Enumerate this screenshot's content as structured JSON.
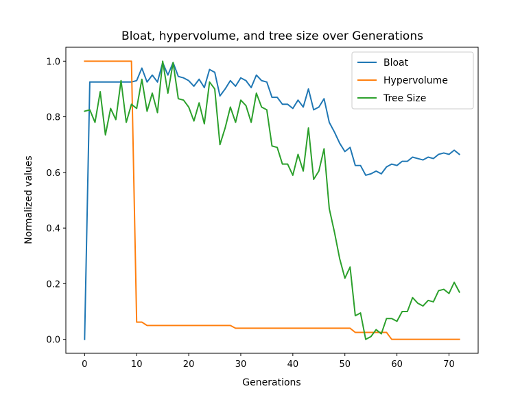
{
  "chart_data": {
    "type": "line",
    "title": "Bloat, hypervolume, and tree size over Generations",
    "xlabel": "Generations",
    "ylabel": "Normalized values",
    "xlim": [
      -3.6,
      75.6
    ],
    "ylim": [
      -0.05,
      1.05
    ],
    "xticks": [
      0,
      10,
      20,
      30,
      40,
      50,
      60,
      70
    ],
    "yticks": [
      "0.0",
      "0.2",
      "0.4",
      "0.6",
      "0.8",
      "1.0"
    ],
    "ytick_values": [
      0.0,
      0.2,
      0.4,
      0.6,
      0.8,
      1.0
    ],
    "grid": false,
    "legend_position": "top-right",
    "x": [
      0,
      1,
      2,
      3,
      4,
      5,
      6,
      7,
      8,
      9,
      10,
      11,
      12,
      13,
      14,
      15,
      16,
      17,
      18,
      19,
      20,
      21,
      22,
      23,
      24,
      25,
      26,
      27,
      28,
      29,
      30,
      31,
      32,
      33,
      34,
      35,
      36,
      37,
      38,
      39,
      40,
      41,
      42,
      43,
      44,
      45,
      46,
      47,
      48,
      49,
      50,
      51,
      52,
      53,
      54,
      55,
      56,
      57,
      58,
      59,
      60,
      61,
      62,
      63,
      64,
      65,
      66,
      67,
      68,
      69,
      70,
      71,
      72
    ],
    "series": [
      {
        "name": "Bloat",
        "color": "#1f77b4",
        "values": [
          0.0,
          0.925,
          0.925,
          0.925,
          0.925,
          0.925,
          0.925,
          0.925,
          0.925,
          0.925,
          0.93,
          0.975,
          0.925,
          0.95,
          0.925,
          0.995,
          0.95,
          0.995,
          0.945,
          0.94,
          0.93,
          0.91,
          0.935,
          0.905,
          0.97,
          0.96,
          0.875,
          0.9,
          0.93,
          0.91,
          0.94,
          0.93,
          0.905,
          0.95,
          0.93,
          0.925,
          0.87,
          0.87,
          0.845,
          0.845,
          0.83,
          0.86,
          0.835,
          0.9,
          0.825,
          0.835,
          0.865,
          0.78,
          0.745,
          0.705,
          0.675,
          0.69,
          0.625,
          0.625,
          0.59,
          0.595,
          0.605,
          0.595,
          0.62,
          0.63,
          0.625,
          0.64,
          0.64,
          0.655,
          0.65,
          0.645,
          0.655,
          0.65,
          0.665,
          0.67,
          0.665,
          0.68,
          0.665
        ]
      },
      {
        "name": "Hypervolume",
        "color": "#ff7f0e",
        "values": [
          1.0,
          1.0,
          1.0,
          1.0,
          1.0,
          1.0,
          1.0,
          1.0,
          1.0,
          1.0,
          0.062,
          0.062,
          0.05,
          0.05,
          0.05,
          0.05,
          0.05,
          0.05,
          0.05,
          0.05,
          0.05,
          0.05,
          0.05,
          0.05,
          0.05,
          0.05,
          0.05,
          0.05,
          0.05,
          0.04,
          0.04,
          0.04,
          0.04,
          0.04,
          0.04,
          0.04,
          0.04,
          0.04,
          0.04,
          0.04,
          0.04,
          0.04,
          0.04,
          0.04,
          0.04,
          0.04,
          0.04,
          0.04,
          0.04,
          0.04,
          0.04,
          0.04,
          0.025,
          0.025,
          0.025,
          0.025,
          0.025,
          0.025,
          0.025,
          0.0,
          0.0,
          0.0,
          0.0,
          0.0,
          0.0,
          0.0,
          0.0,
          0.0,
          0.0,
          0.0,
          0.0,
          0.0,
          0.0
        ]
      },
      {
        "name": "Tree Size",
        "color": "#2ca02c",
        "values": [
          0.82,
          0.825,
          0.78,
          0.89,
          0.735,
          0.83,
          0.79,
          0.93,
          0.78,
          0.845,
          0.83,
          0.935,
          0.82,
          0.885,
          0.815,
          1.0,
          0.885,
          0.995,
          0.865,
          0.86,
          0.835,
          0.785,
          0.85,
          0.775,
          0.925,
          0.9,
          0.7,
          0.76,
          0.835,
          0.78,
          0.86,
          0.84,
          0.78,
          0.885,
          0.835,
          0.825,
          0.695,
          0.69,
          0.63,
          0.63,
          0.59,
          0.665,
          0.605,
          0.76,
          0.575,
          0.605,
          0.685,
          0.47,
          0.385,
          0.29,
          0.22,
          0.26,
          0.085,
          0.095,
          0.0,
          0.01,
          0.035,
          0.02,
          0.075,
          0.075,
          0.065,
          0.1,
          0.1,
          0.15,
          0.13,
          0.12,
          0.14,
          0.135,
          0.175,
          0.18,
          0.165,
          0.205,
          0.17
        ]
      }
    ]
  }
}
